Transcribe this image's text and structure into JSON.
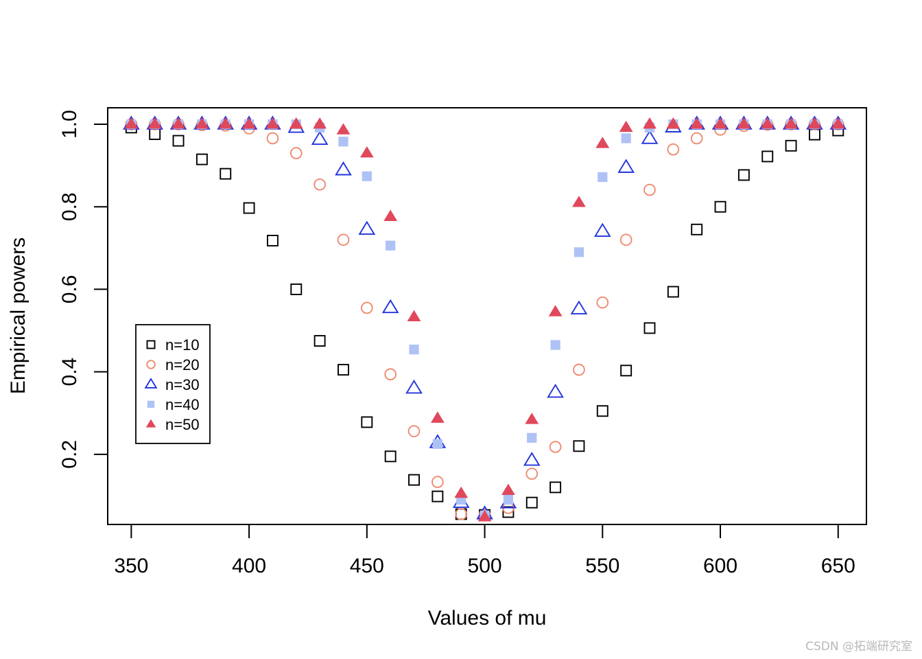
{
  "chart_data": {
    "type": "scatter",
    "title": "",
    "xlabel": "Values of mu",
    "ylabel": "Empirical powers",
    "xlim": [
      340,
      662
    ],
    "ylim": [
      0.03,
      1.04
    ],
    "x_ticks": [
      350,
      400,
      450,
      500,
      550,
      600,
      650
    ],
    "x_tick_labels": [
      "350",
      "400",
      "450",
      "500",
      "550",
      "600",
      "650"
    ],
    "y_ticks": [
      0.2,
      0.4,
      0.6,
      0.8,
      1.0
    ],
    "y_tick_labels": [
      "0.2",
      "0.4",
      "0.6",
      "0.8",
      "1.0"
    ],
    "grid": false,
    "legend_position": "left",
    "x": [
      350,
      360,
      370,
      380,
      390,
      400,
      410,
      420,
      430,
      440,
      450,
      460,
      470,
      480,
      490,
      500,
      510,
      520,
      530,
      540,
      550,
      560,
      570,
      580,
      590,
      600,
      610,
      620,
      630,
      640,
      650
    ],
    "series": [
      {
        "name": "n=10",
        "marker": "open-square",
        "color": "#000000",
        "values": [
          0.992,
          0.976,
          0.96,
          0.915,
          0.88,
          0.797,
          0.718,
          0.6,
          0.475,
          0.405,
          0.278,
          0.195,
          0.138,
          0.098,
          0.055,
          0.053,
          0.06,
          0.083,
          0.12,
          0.22,
          0.305,
          0.403,
          0.506,
          0.594,
          0.745,
          0.8,
          0.877,
          0.922,
          0.948,
          0.975,
          0.985
        ]
      },
      {
        "name": "n=20",
        "marker": "open-circle",
        "color": "#ef8a6f",
        "values": [
          1.0,
          1.0,
          1.0,
          0.998,
          0.997,
          0.99,
          0.966,
          0.93,
          0.854,
          0.72,
          0.555,
          0.394,
          0.256,
          0.133,
          0.055,
          0.052,
          0.07,
          0.153,
          0.218,
          0.405,
          0.568,
          0.72,
          0.841,
          0.939,
          0.966,
          0.987,
          0.996,
          0.999,
          1.0,
          1.0,
          1.0
        ]
      },
      {
        "name": "n=30",
        "marker": "open-triangle",
        "color": "#2233dd",
        "values": [
          1.0,
          1.0,
          1.0,
          1.0,
          1.0,
          1.0,
          1.0,
          0.992,
          0.963,
          0.889,
          0.745,
          0.555,
          0.36,
          0.228,
          0.083,
          0.055,
          0.082,
          0.185,
          0.35,
          0.552,
          0.74,
          0.895,
          0.965,
          0.993,
          1.0,
          1.0,
          1.0,
          1.0,
          1.0,
          1.0,
          1.0
        ]
      },
      {
        "name": "n=40",
        "marker": "filled-square",
        "color": "#aec2f5",
        "values": [
          1.0,
          1.0,
          1.0,
          1.0,
          1.0,
          1.0,
          1.0,
          1.0,
          0.992,
          0.958,
          0.874,
          0.706,
          0.454,
          0.225,
          0.09,
          0.052,
          0.09,
          0.24,
          0.465,
          0.69,
          0.872,
          0.966,
          0.992,
          1.0,
          1.0,
          1.0,
          1.0,
          1.0,
          1.0,
          1.0,
          1.0
        ]
      },
      {
        "name": "n=50",
        "marker": "filled-triangle",
        "color": "#e0485b",
        "values": [
          1.0,
          1.0,
          1.0,
          1.0,
          1.0,
          1.0,
          1.0,
          1.0,
          1.0,
          0.986,
          0.93,
          0.776,
          0.533,
          0.287,
          0.105,
          0.048,
          0.112,
          0.284,
          0.545,
          0.81,
          0.953,
          0.992,
          1.0,
          1.0,
          1.0,
          1.0,
          1.0,
          1.0,
          1.0,
          1.0,
          1.0
        ]
      }
    ]
  },
  "watermark": "CSDN @拓端研究室"
}
